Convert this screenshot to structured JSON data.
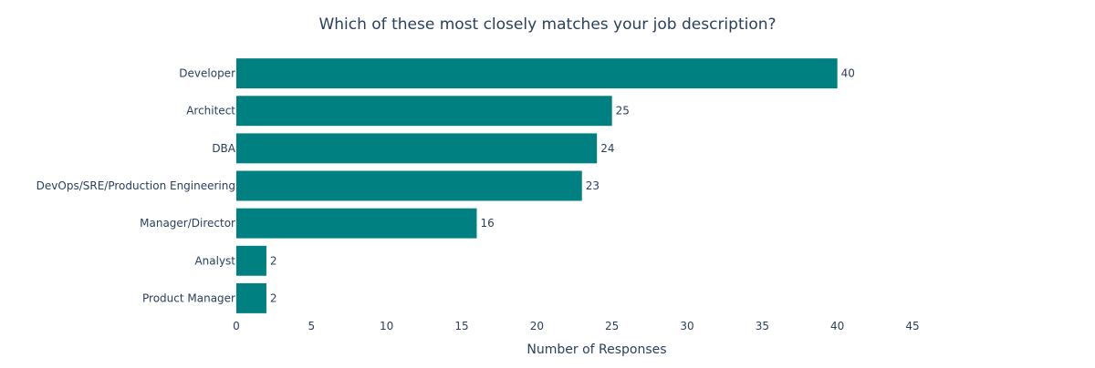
{
  "chart_data": {
    "type": "bar",
    "orientation": "horizontal",
    "title": "Which of these most closely matches your job description?",
    "xlabel": "Number of Responses",
    "ylabel": "",
    "categories": [
      "Developer",
      "Architect",
      "DBA",
      "DevOps/SRE/Production Engineering",
      "Manager/Director",
      "Analyst",
      "Product Manager"
    ],
    "values": [
      40,
      25,
      24,
      23,
      16,
      2,
      2
    ],
    "xlim": [
      0,
      45
    ],
    "xticks": [
      0,
      5,
      10,
      15,
      20,
      25,
      30,
      35,
      40,
      45
    ],
    "bar_color": "#008080",
    "text_color": "#2a3f5f",
    "grid": false,
    "legend": false
  }
}
